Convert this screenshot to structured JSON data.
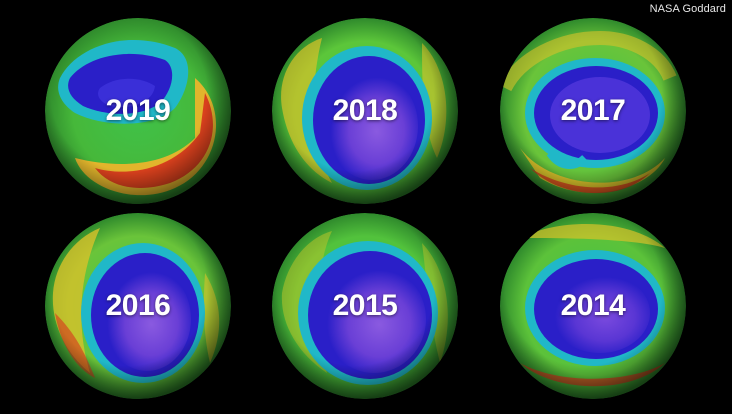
{
  "credit": "NASA Goddard",
  "globes": [
    {
      "year": "2019",
      "palette": "high-ozone-red-ring"
    },
    {
      "year": "2018",
      "palette": "large-hole"
    },
    {
      "year": "2017",
      "palette": "medium-hole"
    },
    {
      "year": "2016",
      "palette": "large-hole"
    },
    {
      "year": "2015",
      "palette": "large-hole"
    },
    {
      "year": "2014",
      "palette": "medium-hole"
    }
  ],
  "colors": {
    "background": "#000000",
    "low_ozone_purple": "#6a3fd6",
    "hole_blue": "#2a1fc8",
    "ring_cyan": "#20b8c8",
    "mid_green": "#3fc24a",
    "high_yellow": "#d8c22a",
    "high_red": "#d8331c"
  }
}
